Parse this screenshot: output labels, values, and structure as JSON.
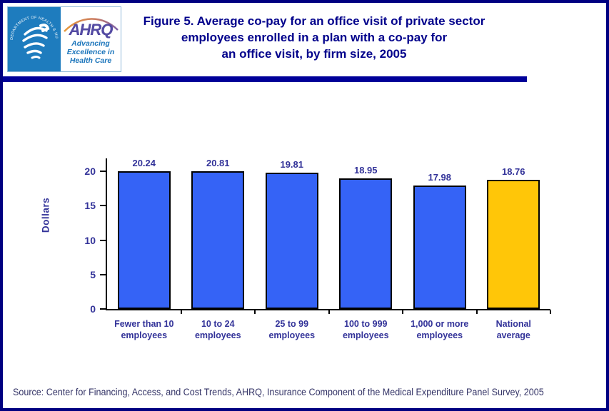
{
  "header": {
    "logo": {
      "hhs_seal_text": "DEPARTMENT OF HEALTH & HUMAN SERVICES • USA",
      "ahrq_wordmark": "AHRQ",
      "tagline_lines": [
        "Advancing",
        "Excellence in",
        "Health Care"
      ]
    },
    "title_lines": [
      "Figure 5. Average co-pay for an office visit of private sector",
      "employees enrolled in a plan with a co-pay for",
      "an office visit, by firm size, 2005"
    ]
  },
  "chart_data": {
    "type": "bar",
    "title": "Figure 5. Average co-pay for an office visit of private sector employees enrolled in a plan with a co-pay for an office visit, by firm size, 2005",
    "categories": [
      "Fewer than 10 employees",
      "10 to 24 employees",
      "25 to 99 employees",
      "100 to 999 employees",
      "1,000 or more employees",
      "National average"
    ],
    "category_lines": [
      [
        "Fewer than 10",
        "employees"
      ],
      [
        "10 to 24",
        "employees"
      ],
      [
        "25 to 99",
        "employees"
      ],
      [
        "100 to 999",
        "employees"
      ],
      [
        "1,000 or more",
        "employees"
      ],
      [
        "National",
        "average"
      ]
    ],
    "values": [
      20.24,
      20.81,
      19.81,
      18.95,
      17.98,
      18.76
    ],
    "value_labels": [
      "20.24",
      "20.81",
      "19.81",
      "18.95",
      "17.98",
      "18.76"
    ],
    "bar_colors": [
      "#3563f6",
      "#3563f6",
      "#3563f6",
      "#3563f6",
      "#3563f6",
      "#ffc608"
    ],
    "xlabel": "",
    "ylabel": "Dollars",
    "yticks": [
      0,
      5,
      10,
      15,
      20
    ],
    "ylim": [
      0,
      21.9
    ],
    "grid": false,
    "legend": false
  },
  "footer": {
    "source": "Source: Center for Financing, Access, and Cost Trends, AHRQ, Insurance Component of the Medical Expenditure Panel Survey, 2005"
  },
  "colors": {
    "title_text": "#00008b",
    "chart_text": "#333399",
    "page_border": "#000080",
    "divider_bar": "#000099",
    "bar_blue": "#3563f6",
    "bar_gold": "#ffc608",
    "hhs_blue": "#1e7cbe",
    "ahrq_purple": "#544ba3",
    "tagline_blue": "#1b75bb"
  }
}
